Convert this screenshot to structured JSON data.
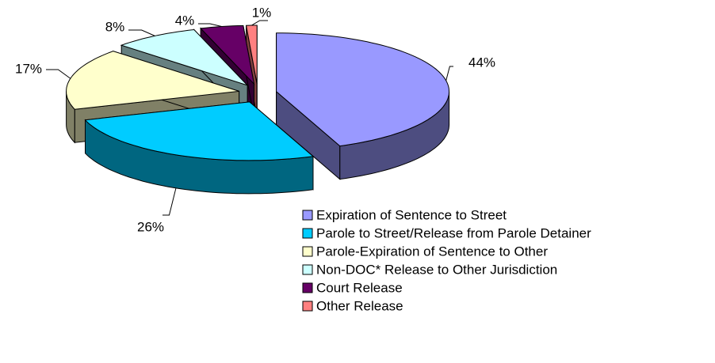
{
  "chart_data": {
    "type": "pie",
    "categories": [
      "Expiration of Sentence to Street",
      "Parole to Street/Release from Parole Detainer",
      "Parole-Expiration of Sentence to Other",
      "Non-DOC* Release to Other Jurisdiction",
      "Court Release",
      "Other Release"
    ],
    "values": [
      44,
      26,
      17,
      8,
      4,
      1
    ],
    "value_labels": [
      "44%",
      "26%",
      "17%",
      "8%",
      "4%",
      "1%"
    ],
    "colors": [
      "#9999ff",
      "#00ccff",
      "#ffffcc",
      "#ccffff",
      "#660066",
      "#ff8080"
    ],
    "legend": "bottom-right"
  }
}
